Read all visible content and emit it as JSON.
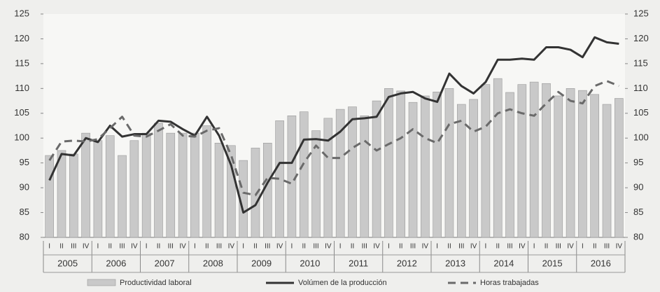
{
  "chart_data": {
    "type": "bar",
    "categories": [
      "I",
      "II",
      "III",
      "IV",
      "I",
      "II",
      "III",
      "IV",
      "I",
      "II",
      "III",
      "IV",
      "I",
      "II",
      "III",
      "IV",
      "I",
      "II",
      "III",
      "IV",
      "I",
      "II",
      "III",
      "IV",
      "I",
      "II",
      "III",
      "IV",
      "I",
      "II",
      "III",
      "IV",
      "I",
      "II",
      "III",
      "IV",
      "I",
      "II",
      "III",
      "IV",
      "I",
      "II",
      "III",
      "IV",
      "I",
      "II",
      "III",
      "IV"
    ],
    "years": [
      "2005",
      "2006",
      "2007",
      "2008",
      "2009",
      "2010",
      "2011",
      "2012",
      "2013",
      "2014",
      "2015",
      "2016"
    ],
    "ylim": [
      80,
      125
    ],
    "yticks": [
      80,
      85,
      90,
      95,
      100,
      105,
      110,
      115,
      120,
      125
    ],
    "y2lim": [
      80,
      125
    ],
    "y2ticks": [
      80,
      85,
      90,
      95,
      100,
      105,
      110,
      115,
      120,
      125
    ],
    "series": [
      {
        "name": "Productividad laboral",
        "type": "bar",
        "color": "#c9c9c9",
        "values": [
          96.5,
          97.5,
          96.8,
          101,
          99.5,
          100.5,
          96.5,
          99.5,
          101,
          103,
          101,
          101,
          101,
          102.5,
          99,
          98.5,
          95.5,
          98,
          99,
          103.5,
          104.5,
          105.3,
          101.5,
          104,
          105.8,
          106.3,
          104.5,
          107.5,
          110,
          109.5,
          107.2,
          108.5,
          109.3,
          110,
          106.8,
          107.8,
          110.8,
          112,
          109.2,
          110.8,
          111.3,
          111,
          108.5,
          110,
          109.6,
          108.8,
          106.8,
          108
        ]
      },
      {
        "name": "Volúmen de la producción",
        "type": "line",
        "axis": "y2",
        "color": "#333333",
        "values": [
          91.5,
          96.8,
          96.5,
          100,
          99.2,
          102.5,
          100.3,
          100.8,
          100.8,
          103.5,
          103.3,
          101.8,
          100.5,
          104.3,
          100.5,
          94.5,
          85,
          86.5,
          91,
          95,
          95,
          99.7,
          99.8,
          99.5,
          101.3,
          103.8,
          104,
          104.3,
          108.3,
          109,
          109.3,
          108,
          107.3,
          113,
          110.5,
          109,
          111.3,
          115.8,
          115.8,
          116,
          115.8,
          118.3,
          118.3,
          117.8,
          116.3,
          120.3,
          119.3,
          119
        ]
      },
      {
        "name": "Horas trabajadas",
        "type": "line",
        "dashed": true,
        "axis": "y2",
        "color": "#6a6a6a",
        "values": [
          95.5,
          99.3,
          99.5,
          99.3,
          99.8,
          102,
          104.3,
          100.5,
          100.3,
          101.5,
          102.8,
          100.5,
          100.3,
          101.5,
          102,
          96.5,
          89,
          88.5,
          92,
          91.8,
          90.8,
          95,
          98.5,
          96,
          96,
          98,
          99.5,
          97.5,
          98.8,
          100,
          101.8,
          100,
          99,
          102.8,
          103.5,
          101.3,
          102.3,
          105,
          105.8,
          105,
          104.5,
          107,
          109.3,
          107.5,
          107,
          110.5,
          111.5,
          110.5
        ]
      }
    ]
  }
}
